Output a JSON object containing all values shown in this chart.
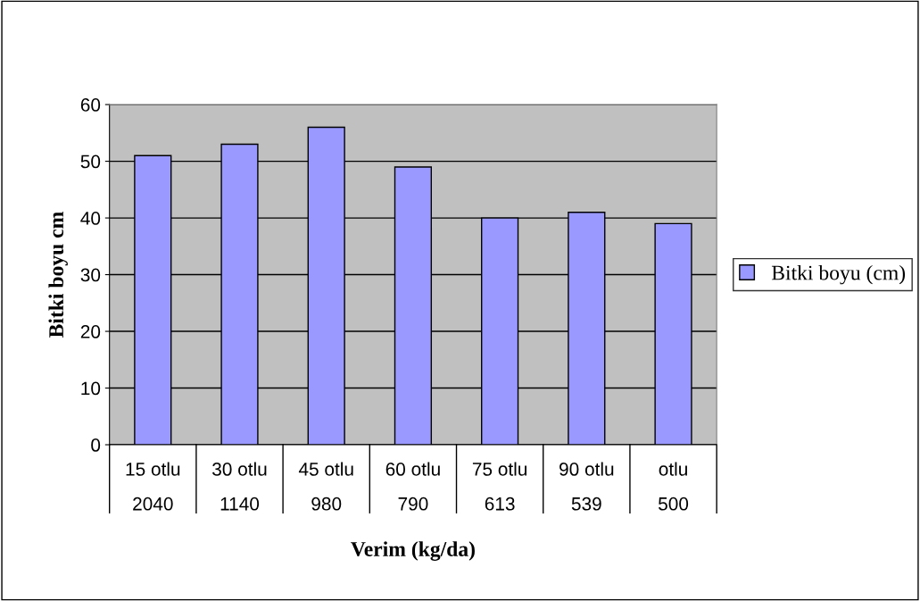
{
  "chart_data": {
    "type": "bar",
    "xlabel": "Verim (kg/da)",
    "ylabel": "Bitki boyu cm",
    "categories": [
      "15 otlu\n\n2040",
      "30 otlu\n\n1140",
      "45 otlu\n\n980",
      "60 otlu\n\n790",
      "75 otlu\n\n613",
      "90 otlu\n\n539",
      "otlu\n\n500"
    ],
    "series": [
      {
        "name": "Bitki boyu (cm)",
        "color": "#9999ff",
        "values": [
          51,
          53,
          56,
          49,
          40,
          41,
          39
        ]
      }
    ],
    "ylim": [
      0,
      60
    ],
    "yticks": [
      0,
      10,
      20,
      30,
      40,
      50,
      60
    ],
    "grid": "y",
    "legend": "right"
  }
}
